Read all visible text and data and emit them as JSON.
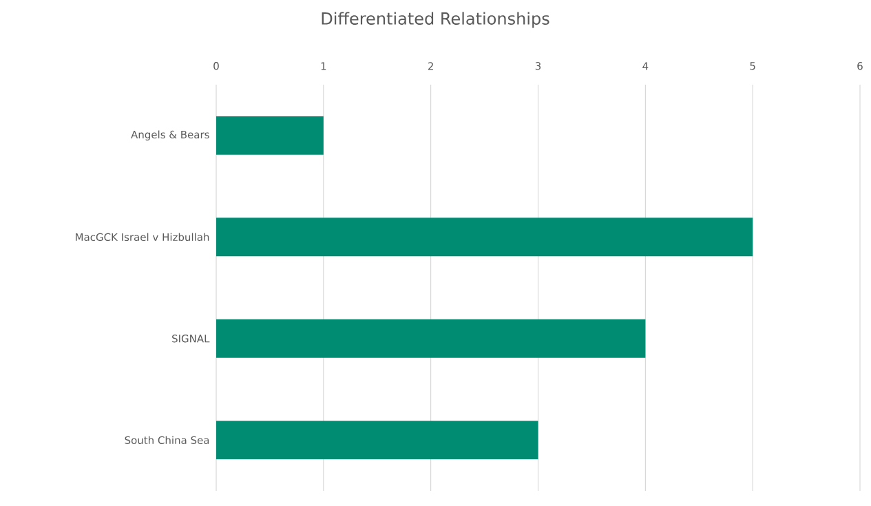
{
  "chart_data": {
    "type": "bar",
    "orientation": "horizontal",
    "title": "Differentiated Relationships",
    "categories": [
      "Angels & Bears",
      "MacGCK Israel v Hizbullah",
      "SIGNAL",
      "South China Sea"
    ],
    "values": [
      1,
      5,
      4,
      3
    ],
    "color": "#008c72",
    "xlim": [
      0,
      6
    ],
    "xticks": [
      0,
      1,
      2,
      3,
      4,
      5,
      6
    ],
    "grid": "x"
  }
}
